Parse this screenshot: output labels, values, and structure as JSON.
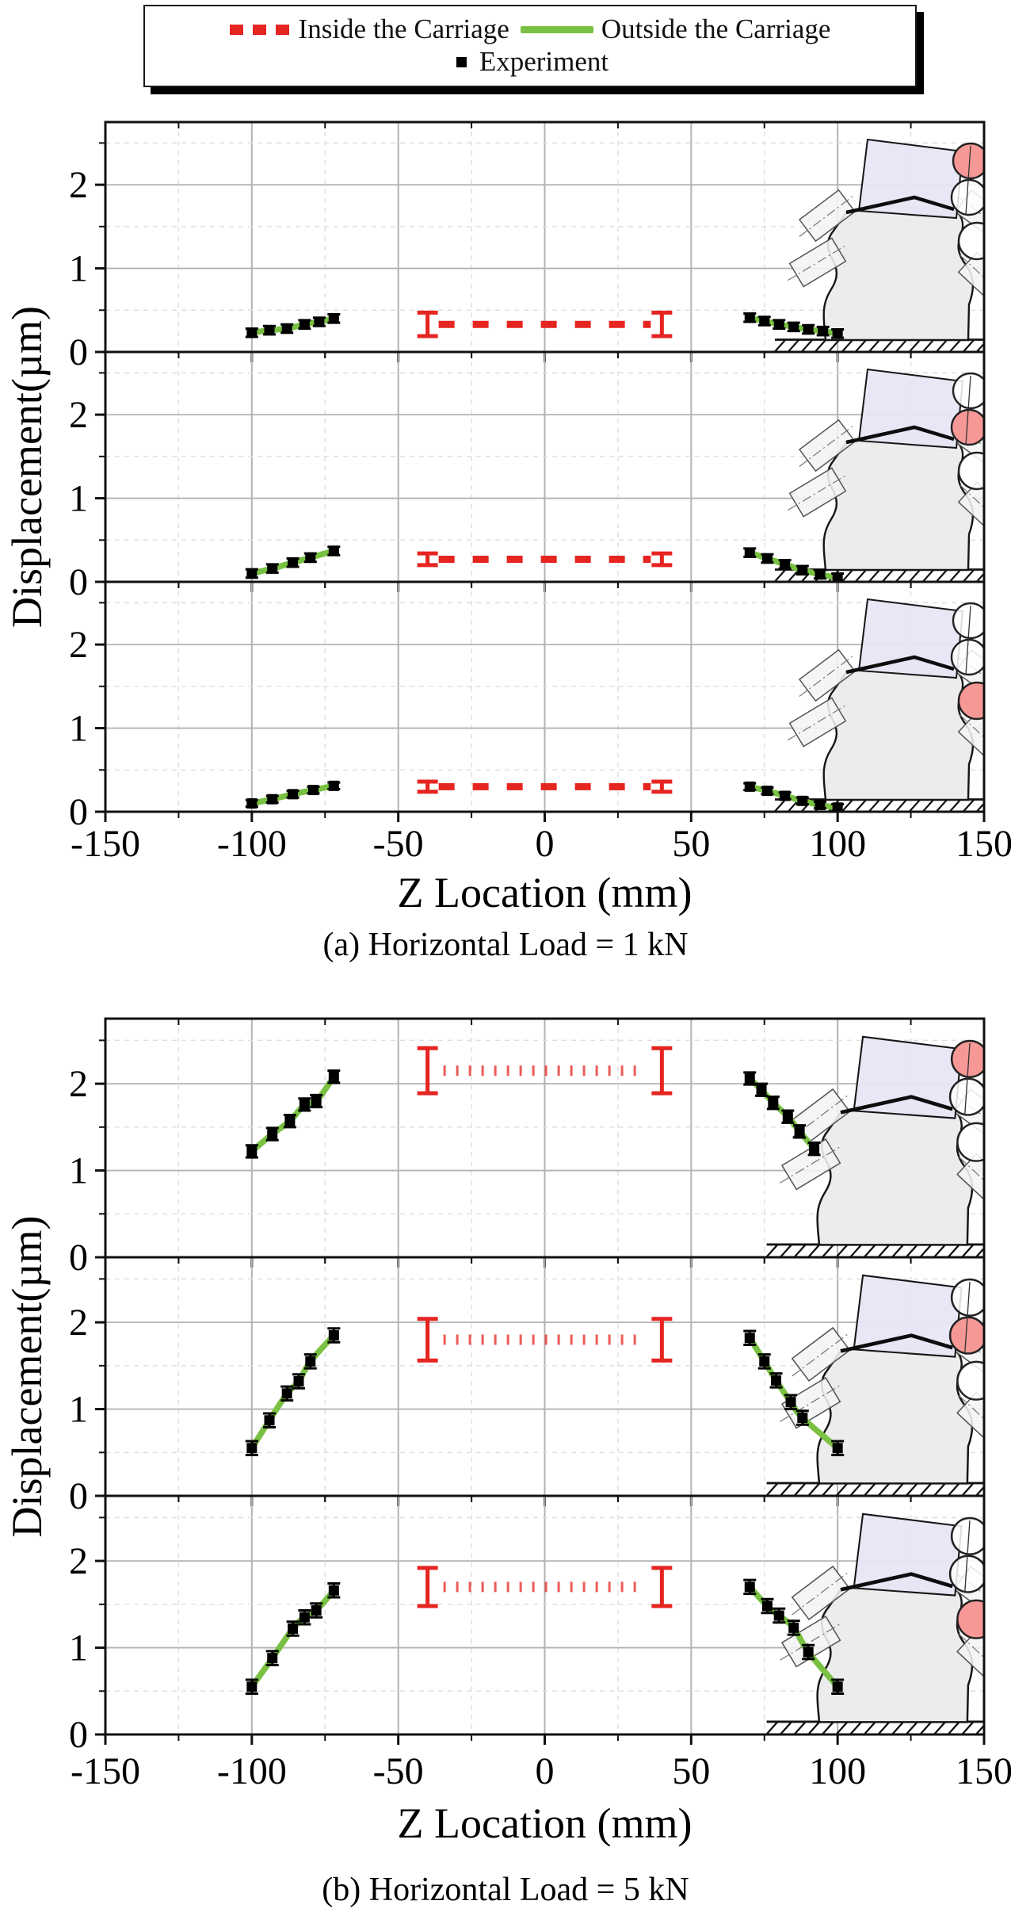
{
  "legend": {
    "items": [
      {
        "label": "Inside the Carriage",
        "swatch": "red-dashed",
        "color": "#e62420"
      },
      {
        "label": "Outside the Carriage",
        "swatch": "green-line",
        "color": "#7ac143"
      },
      {
        "label": "Experiment",
        "swatch": "black-square",
        "color": "#000000"
      }
    ]
  },
  "colors": {
    "inside_line": "#e62420",
    "outside_line": "#7ac143",
    "experiment_marker": "#000000",
    "highlight_circle_fill": "#f69896",
    "machine_body_fill": "#ececec",
    "machine_table_fill": "#e6e6f4",
    "grid_major": "#b3b3b3",
    "grid_minor": "#dedede",
    "axis": "#111111"
  },
  "chart_data": [
    {
      "id": "a",
      "type": "line",
      "caption": "(a) Horizontal Load = 1 kN",
      "xlabel": "Z Location (mm)",
      "ylabel": "Displacement(µm)",
      "xlim": [
        -150,
        150
      ],
      "xticks": [
        -150,
        -100,
        -50,
        0,
        50,
        100,
        150
      ],
      "x_minor_step": 25,
      "ylim": [
        0,
        2.75
      ],
      "yticks": [
        0,
        1,
        2
      ],
      "y_minor_step": 0.5,
      "grid": "major-solid-minor-dashed",
      "legend_position": "top",
      "panels": [
        {
          "highlighted_circle": 1,
          "inside": {
            "style": "dash",
            "y": 0.33,
            "x_start": -40,
            "x_end": 40,
            "cap_err": 0.14
          },
          "outside_left": [
            [
              -100,
              0.23
            ],
            [
              -94,
              0.26
            ],
            [
              -88,
              0.28
            ],
            [
              -82,
              0.33
            ],
            [
              -77,
              0.36
            ],
            [
              -72,
              0.4
            ]
          ],
          "outside_right": [
            [
              70,
              0.41
            ],
            [
              75,
              0.37
            ],
            [
              80,
              0.33
            ],
            [
              85,
              0.3
            ],
            [
              90,
              0.27
            ],
            [
              95,
              0.25
            ],
            [
              100,
              0.22
            ]
          ],
          "marker_err": 0.05
        },
        {
          "highlighted_circle": 2,
          "inside": {
            "style": "dash",
            "y": 0.27,
            "x_start": -40,
            "x_end": 40,
            "cap_err": 0.07
          },
          "outside_left": [
            [
              -100,
              0.1
            ],
            [
              -93,
              0.16
            ],
            [
              -86,
              0.23
            ],
            [
              -80,
              0.29
            ],
            [
              -72,
              0.37
            ]
          ],
          "outside_right": [
            [
              70,
              0.35
            ],
            [
              76,
              0.28
            ],
            [
              82,
              0.21
            ],
            [
              88,
              0.14
            ],
            [
              94,
              0.09
            ],
            [
              100,
              0.05
            ]
          ],
          "marker_err": 0.05
        },
        {
          "highlighted_circle": 3,
          "inside": {
            "style": "dash",
            "y": 0.3,
            "x_start": -40,
            "x_end": 40,
            "cap_err": 0.06
          },
          "outside_left": [
            [
              -100,
              0.1
            ],
            [
              -93,
              0.15
            ],
            [
              -86,
              0.21
            ],
            [
              -79,
              0.26
            ],
            [
              -72,
              0.31
            ]
          ],
          "outside_right": [
            [
              70,
              0.3
            ],
            [
              76,
              0.25
            ],
            [
              82,
              0.19
            ],
            [
              88,
              0.13
            ],
            [
              94,
              0.08
            ],
            [
              100,
              0.05
            ]
          ],
          "marker_err": 0.04
        }
      ]
    },
    {
      "id": "b",
      "type": "line",
      "caption": "(b) Horizontal Load = 5 kN",
      "xlabel": "Z Location (mm)",
      "ylabel": "Displacement(µm)",
      "xlim": [
        -150,
        150
      ],
      "xticks": [
        -150,
        -100,
        -50,
        0,
        50,
        100,
        150
      ],
      "x_minor_step": 25,
      "ylim": [
        0,
        2.75
      ],
      "yticks": [
        0,
        1,
        2
      ],
      "y_minor_step": 0.5,
      "grid": "major-solid-minor-dashed",
      "legend_position": "top",
      "panels": [
        {
          "highlighted_circle": 1,
          "inside": {
            "style": "dot",
            "y": 2.15,
            "x_start": -40,
            "x_end": 40,
            "cap_err": 0.26
          },
          "outside_left": [
            [
              -100,
              1.22
            ],
            [
              -93,
              1.42
            ],
            [
              -87,
              1.57
            ],
            [
              -82,
              1.76
            ],
            [
              -78,
              1.8
            ],
            [
              -72,
              2.08
            ]
          ],
          "outside_right": [
            [
              70,
              2.06
            ],
            [
              74,
              1.93
            ],
            [
              78,
              1.78
            ],
            [
              83,
              1.62
            ],
            [
              87,
              1.45
            ],
            [
              92,
              1.25
            ]
          ],
          "marker_err": 0.07
        },
        {
          "highlighted_circle": 2,
          "inside": {
            "style": "dot",
            "y": 1.8,
            "x_start": -40,
            "x_end": 40,
            "cap_err": 0.24
          },
          "outside_left": [
            [
              -100,
              0.55
            ],
            [
              -94,
              0.87
            ],
            [
              -88,
              1.18
            ],
            [
              -84,
              1.32
            ],
            [
              -80,
              1.55
            ],
            [
              -72,
              1.85
            ]
          ],
          "outside_right": [
            [
              70,
              1.82
            ],
            [
              75,
              1.55
            ],
            [
              79,
              1.33
            ],
            [
              84,
              1.08
            ],
            [
              88,
              0.9
            ],
            [
              100,
              0.55
            ]
          ],
          "marker_err": 0.08
        },
        {
          "highlighted_circle": 3,
          "inside": {
            "style": "dot",
            "y": 1.7,
            "x_start": -40,
            "x_end": 40,
            "cap_err": 0.22
          },
          "outside_left": [
            [
              -100,
              0.55
            ],
            [
              -93,
              0.88
            ],
            [
              -86,
              1.22
            ],
            [
              -82,
              1.35
            ],
            [
              -78,
              1.43
            ],
            [
              -72,
              1.66
            ]
          ],
          "outside_right": [
            [
              70,
              1.7
            ],
            [
              76,
              1.48
            ],
            [
              80,
              1.37
            ],
            [
              85,
              1.23
            ],
            [
              90,
              0.95
            ],
            [
              100,
              0.55
            ]
          ],
          "marker_err": 0.08
        }
      ]
    }
  ]
}
